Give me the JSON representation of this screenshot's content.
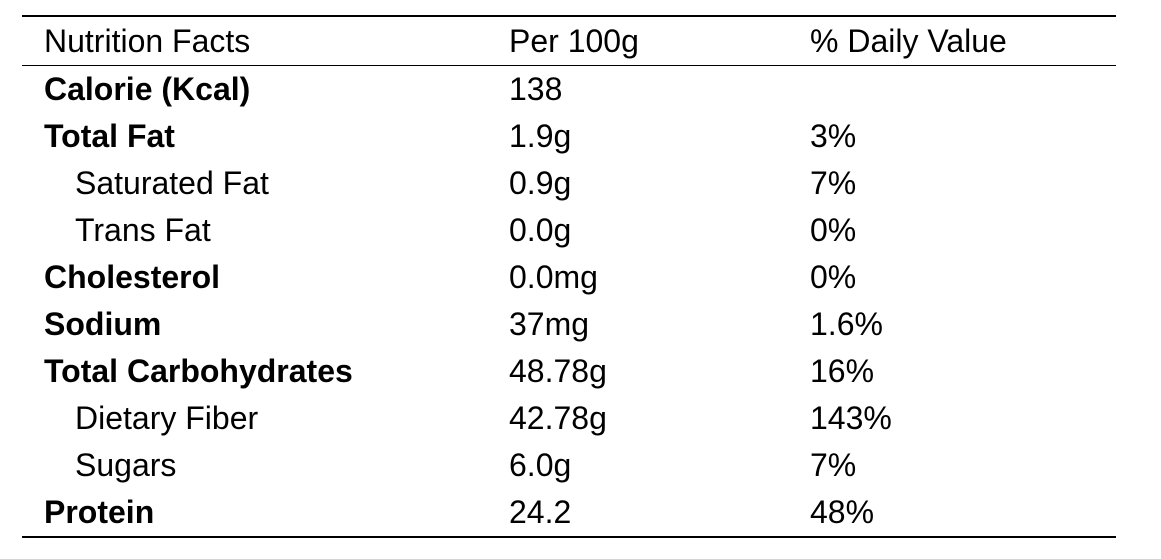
{
  "table": {
    "headers": [
      "Nutrition Facts",
      "Per 100g",
      "% Daily Value"
    ],
    "rows": [
      {
        "name": "Calorie (Kcal)",
        "per100g": "138",
        "dv": "",
        "bold": true,
        "indent": false
      },
      {
        "name": "Total Fat",
        "per100g": "1.9g",
        "dv": "3%",
        "bold": true,
        "indent": false
      },
      {
        "name": "Saturated Fat",
        "per100g": "0.9g",
        "dv": "7%",
        "bold": false,
        "indent": true
      },
      {
        "name": "Trans Fat",
        "per100g": "0.0g",
        "dv": "0%",
        "bold": false,
        "indent": true
      },
      {
        "name": "Cholesterol",
        "per100g": "0.0mg",
        "dv": "0%",
        "bold": true,
        "indent": false
      },
      {
        "name": "Sodium",
        "per100g": "37mg",
        "dv": "1.6%",
        "bold": true,
        "indent": false
      },
      {
        "name": "Total Carbohydrates",
        "per100g": "48.78g",
        "dv": "16%",
        "bold": true,
        "indent": false
      },
      {
        "name": "Dietary Fiber",
        "per100g": "42.78g",
        "dv": "143%",
        "bold": false,
        "indent": true
      },
      {
        "name": "Sugars",
        "per100g": "6.0g",
        "dv": "7%",
        "bold": false,
        "indent": true
      },
      {
        "name": "Protein",
        "per100g": "24.2",
        "dv": "48%",
        "bold": true,
        "indent": false
      }
    ]
  }
}
